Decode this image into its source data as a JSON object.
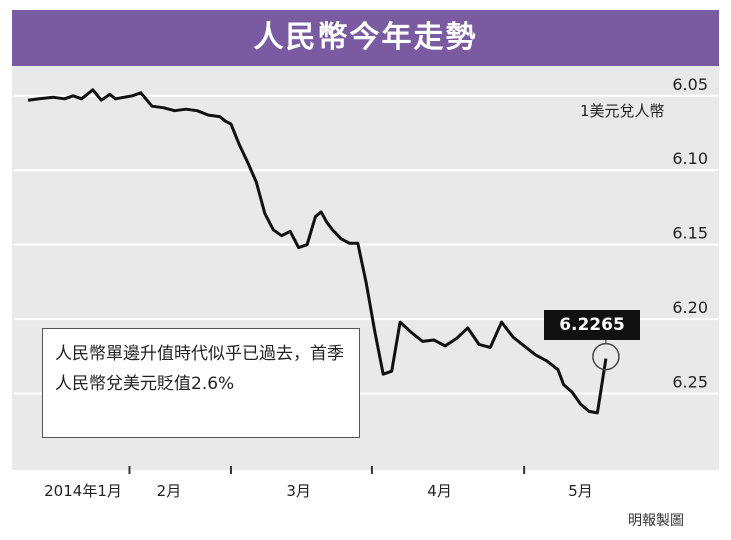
{
  "header": {
    "title": "人民幣今年走勢"
  },
  "chart_data": {
    "type": "line",
    "title": "人民幣今年走勢",
    "ylabel": "1美元兌人幣",
    "xlabel": "",
    "y_inverted": true,
    "ylim": [
      6.03,
      6.3
    ],
    "yticks": [
      "6.05",
      "6.10",
      "6.15",
      "6.20",
      "6.25"
    ],
    "yticks_values": [
      6.05,
      6.1,
      6.15,
      6.2,
      6.25
    ],
    "xlim": [
      0,
      21
    ],
    "xticks": [
      {
        "label": "2014年1月",
        "x": 0
      },
      {
        "label": "2月",
        "x": 5
      },
      {
        "label": "3月",
        "x": 9.6
      },
      {
        "label": "4月",
        "x": 14.6
      },
      {
        "label": "5月",
        "x": 19.6
      }
    ],
    "grid": true,
    "series": [
      {
        "x": [
          0.0,
          0.4,
          0.9,
          1.3,
          1.6,
          1.9,
          2.3,
          2.6,
          2.9,
          3.1,
          3.4,
          3.7,
          4.0,
          4.4,
          4.8,
          5.2,
          5.6,
          6.0,
          6.4,
          6.8,
          7.0,
          7.2,
          7.5,
          7.8,
          8.1,
          8.4,
          8.7,
          9.0,
          9.3,
          9.6,
          9.9,
          10.2,
          10.4,
          10.6,
          10.8,
          11.1,
          11.4,
          11.7,
          12.0,
          12.3,
          12.6,
          12.9,
          13.2,
          13.6,
          14.0,
          14.4,
          14.8,
          15.2,
          15.6,
          16.0,
          16.4,
          16.8,
          17.2,
          17.6,
          18.0,
          18.4,
          18.8,
          19.0,
          19.3,
          19.6,
          19.9,
          20.2,
          20.5
        ],
        "values": [
          6.053,
          6.052,
          6.051,
          6.052,
          6.05,
          6.052,
          6.046,
          6.053,
          6.049,
          6.052,
          6.051,
          6.05,
          6.048,
          6.057,
          6.058,
          6.06,
          6.059,
          6.06,
          6.063,
          6.064,
          6.067,
          6.069,
          6.083,
          6.095,
          6.108,
          6.129,
          6.14,
          6.144,
          6.141,
          6.152,
          6.15,
          6.131,
          6.128,
          6.135,
          6.14,
          6.146,
          6.149,
          6.149,
          6.176,
          6.208,
          6.237,
          6.235,
          6.202,
          6.209,
          6.215,
          6.214,
          6.218,
          6.213,
          6.206,
          6.217,
          6.219,
          6.202,
          6.212,
          6.218,
          6.224,
          6.228,
          6.234,
          6.244,
          6.249,
          6.257,
          6.262,
          6.263,
          6.2265
        ]
      }
    ],
    "annotations": [
      {
        "text": "6.2265"
      },
      {
        "text": "人民幣單邊升值時代似乎已過去，首季人民幣兌美元貶值2.6%"
      }
    ]
  },
  "note_text": "人民幣單邊升值時代似乎已過去，首季人民幣兌美元貶值2.6%",
  "callout_text": "6.2265",
  "credit": "明報製圖",
  "colors": {
    "header_bg": "#7a5aa0",
    "plot_bg": "#e9e9e9",
    "line": "#111111",
    "grid": "#ffffff"
  }
}
